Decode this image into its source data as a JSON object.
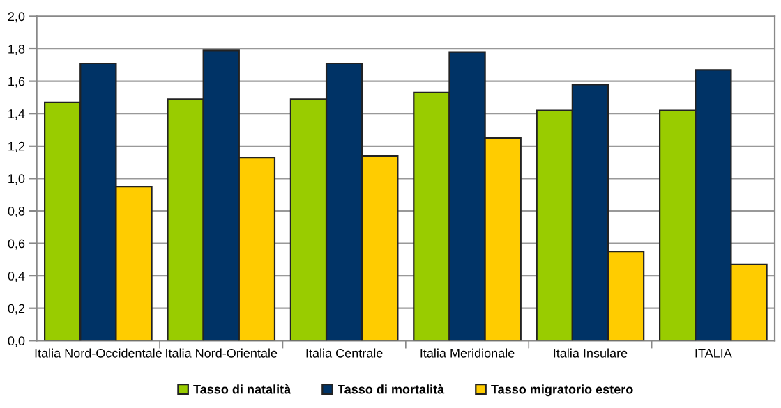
{
  "chart_data": {
    "type": "bar",
    "categories": [
      "Italia Nord-Occidentale",
      "Italia Nord-Orientale",
      "Italia Centrale",
      "Italia Meridionale",
      "Italia Insulare",
      "ITALIA"
    ],
    "series": [
      {
        "name": "Tasso di natalità",
        "color": "#99cc00",
        "values": [
          1.47,
          1.49,
          1.49,
          1.53,
          1.42,
          1.42
        ]
      },
      {
        "name": "Tasso di mortalità",
        "color": "#003366",
        "values": [
          1.71,
          1.79,
          1.71,
          1.78,
          1.58,
          1.67
        ]
      },
      {
        "name": "Tasso migratorio estero",
        "color": "#ffcc00",
        "values": [
          0.95,
          1.13,
          1.14,
          1.25,
          0.55,
          0.47
        ]
      }
    ],
    "ylim": [
      0,
      2
    ],
    "yticks": [
      {
        "value": 0,
        "label": "0,0"
      },
      {
        "value": 0.2,
        "label": "0,2"
      },
      {
        "value": 0.4,
        "label": "0,4"
      },
      {
        "value": 0.6,
        "label": "0,6"
      },
      {
        "value": 0.8,
        "label": "0,8"
      },
      {
        "value": 1,
        "label": "1,0"
      },
      {
        "value": 1.2,
        "label": "1,2"
      },
      {
        "value": 1.4,
        "label": "1,4"
      },
      {
        "value": 1.6,
        "label": "1,6"
      },
      {
        "value": 1.8,
        "label": "1,8"
      },
      {
        "value": 2,
        "label": "2,0"
      }
    ],
    "grid": "y",
    "legend": "bottom"
  }
}
